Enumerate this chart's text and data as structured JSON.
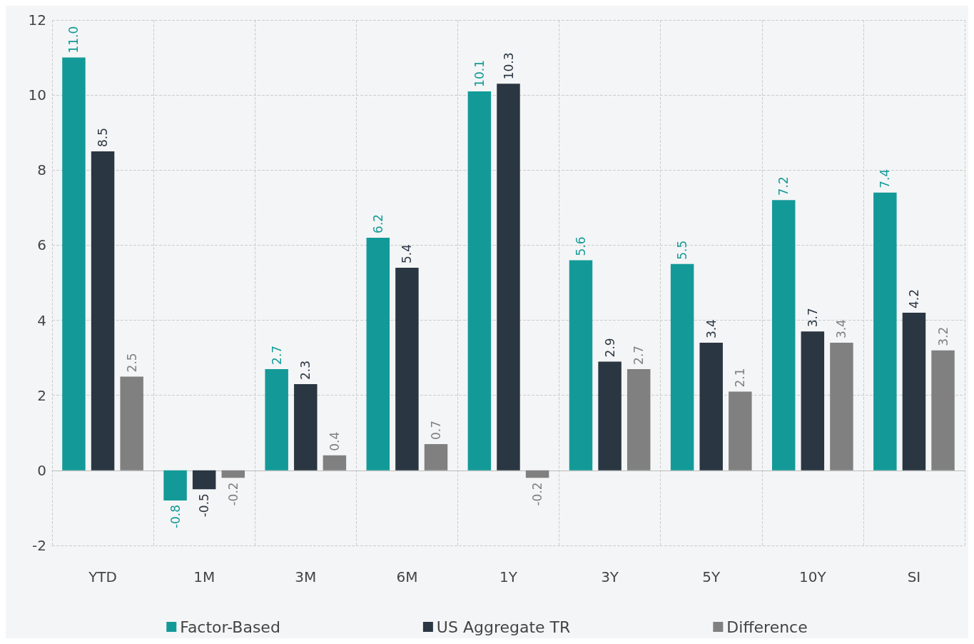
{
  "chart_data": {
    "type": "bar",
    "categories": [
      "YTD",
      "1M",
      "3M",
      "6M",
      "1Y",
      "3Y",
      "5Y",
      "10Y",
      "SI"
    ],
    "series": [
      {
        "name": "Factor-Based",
        "color": "#139a98",
        "values": [
          11.0,
          -0.8,
          2.7,
          6.2,
          10.1,
          5.6,
          5.5,
          7.2,
          7.4
        ],
        "value_labels": [
          "11.0",
          "-0.8",
          "2.7",
          "6.2",
          "10.1",
          "5.6",
          "5.5",
          "7.2",
          "7.4"
        ]
      },
      {
        "name": "US Aggregate TR",
        "color": "#2a3642",
        "values": [
          8.5,
          -0.5,
          2.3,
          5.4,
          10.3,
          2.9,
          3.4,
          3.7,
          4.2
        ],
        "value_labels": [
          "8.5",
          "-0.5",
          "2.3",
          "5.4",
          "10.3",
          "2.9",
          "3.4",
          "3.7",
          "4.2"
        ]
      },
      {
        "name": "Difference",
        "color": "#808080",
        "values": [
          2.5,
          -0.2,
          0.4,
          0.7,
          -0.2,
          2.7,
          2.1,
          3.4,
          3.2
        ],
        "value_labels": [
          "2.5",
          "-0.2",
          "0.4",
          "0.7",
          "-0.2",
          "2.7",
          "2.1",
          "3.4",
          "3.2"
        ]
      }
    ],
    "ylim": [
      -2,
      12
    ],
    "yticks": [
      -2,
      0,
      2,
      4,
      6,
      8,
      10,
      12
    ],
    "grid": true,
    "legend": "bottom"
  }
}
